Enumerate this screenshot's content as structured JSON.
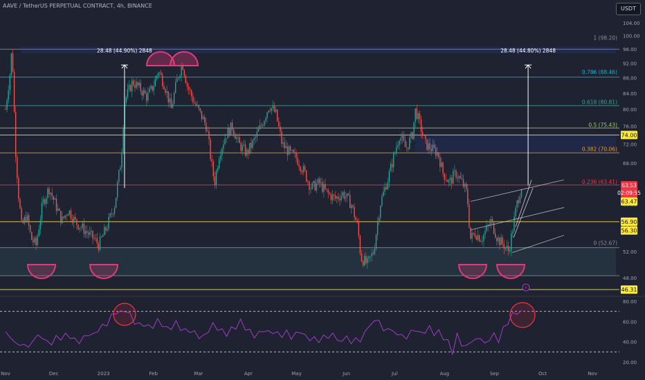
{
  "header": {
    "title": "AAVE / TetherUS PERPETUAL CONTRACT, 4h, BINANCE",
    "currency_button": "USDT"
  },
  "colors": {
    "background": "#1f2231",
    "up": "#26a69a",
    "down": "#ef5350",
    "rsi": "#a13cc8",
    "zone": "#3aa39b",
    "highlight": "#ffeb3b",
    "marker": "#e03a7a"
  },
  "chart_data": {
    "type": "candlestick",
    "symbol": "AAVE/USDT",
    "timeframe": "4h",
    "x_axis": {
      "tick_labels": [
        "Nov",
        "Dec",
        "2023",
        "Feb",
        "Mar",
        "Apr",
        "May",
        "Jun",
        "Jul",
        "Aug",
        "Sep",
        "Oct",
        "Nov"
      ]
    },
    "y_axis": {
      "scale": "log",
      "range": [
        44,
        106
      ],
      "tick_labels": [
        "104.00",
        "100.00",
        "96.00",
        "92.00",
        "88.00",
        "84.00",
        "80.00",
        "76.00",
        "72.00",
        "68.00",
        "64.00",
        "60.00",
        "56.00",
        "52.00",
        "48.00"
      ]
    },
    "price_path": [
      [
        "2022-11-01",
        80
      ],
      [
        "2022-11-04",
        90
      ],
      [
        "2022-11-05",
        97
      ],
      [
        "2022-11-07",
        72
      ],
      [
        "2022-11-09",
        62
      ],
      [
        "2022-11-11",
        56
      ],
      [
        "2022-11-14",
        58
      ],
      [
        "2022-11-17",
        54
      ],
      [
        "2022-11-20",
        53
      ],
      [
        "2022-11-24",
        60
      ],
      [
        "2022-11-28",
        63
      ],
      [
        "2022-12-02",
        60
      ],
      [
        "2022-12-06",
        57
      ],
      [
        "2022-12-10",
        59
      ],
      [
        "2022-12-14",
        57
      ],
      [
        "2022-12-18",
        56
      ],
      [
        "2022-12-22",
        55
      ],
      [
        "2022-12-26",
        54
      ],
      [
        "2022-12-29",
        53
      ],
      [
        "2023-01-03",
        56
      ],
      [
        "2023-01-08",
        60
      ],
      [
        "2023-01-12",
        69
      ],
      [
        "2023-01-14",
        82
      ],
      [
        "2023-01-19",
        87
      ],
      [
        "2023-01-24",
        85
      ],
      [
        "2023-01-28",
        83
      ],
      [
        "2023-02-01",
        86
      ],
      [
        "2023-02-04",
        90
      ],
      [
        "2023-02-08",
        86
      ],
      [
        "2023-02-12",
        80
      ],
      [
        "2023-02-16",
        88
      ],
      [
        "2023-02-19",
        92
      ],
      [
        "2023-02-22",
        86
      ],
      [
        "2023-02-26",
        82
      ],
      [
        "2023-03-02",
        79
      ],
      [
        "2023-03-06",
        76
      ],
      [
        "2023-03-09",
        68
      ],
      [
        "2023-03-11",
        64
      ],
      [
        "2023-03-14",
        70
      ],
      [
        "2023-03-18",
        74
      ],
      [
        "2023-03-22",
        76
      ],
      [
        "2023-03-26",
        72
      ],
      [
        "2023-03-31",
        70
      ],
      [
        "2023-04-05",
        73
      ],
      [
        "2023-04-10",
        77
      ],
      [
        "2023-04-14",
        81
      ],
      [
        "2023-04-18",
        79
      ],
      [
        "2023-04-22",
        72
      ],
      [
        "2023-04-27",
        70
      ],
      [
        "2023-05-01",
        69
      ],
      [
        "2023-05-06",
        66
      ],
      [
        "2023-05-10",
        63
      ],
      [
        "2023-05-15",
        64
      ],
      [
        "2023-05-20",
        62
      ],
      [
        "2023-05-25",
        61
      ],
      [
        "2023-05-30",
        62
      ],
      [
        "2023-06-04",
        60
      ],
      [
        "2023-06-08",
        56
      ],
      [
        "2023-06-10",
        51
      ],
      [
        "2023-06-14",
        50
      ],
      [
        "2023-06-18",
        52
      ],
      [
        "2023-06-22",
        60
      ],
      [
        "2023-06-27",
        65
      ],
      [
        "2023-07-01",
        70
      ],
      [
        "2023-07-04",
        74
      ],
      [
        "2023-07-08",
        71
      ],
      [
        "2023-07-12",
        74
      ],
      [
        "2023-07-14",
        80
      ],
      [
        "2023-07-17",
        76
      ],
      [
        "2023-07-20",
        72
      ],
      [
        "2023-07-24",
        71
      ],
      [
        "2023-07-28",
        70
      ],
      [
        "2023-07-31",
        66
      ],
      [
        "2023-08-04",
        64
      ],
      [
        "2023-08-08",
        66
      ],
      [
        "2023-08-12",
        64
      ],
      [
        "2023-08-15",
        62
      ],
      [
        "2023-08-17",
        54
      ],
      [
        "2023-08-20",
        55
      ],
      [
        "2023-08-24",
        54
      ],
      [
        "2023-08-28",
        56
      ],
      [
        "2023-08-30",
        57
      ],
      [
        "2023-09-03",
        54
      ],
      [
        "2023-09-07",
        53
      ],
      [
        "2023-09-10",
        52
      ],
      [
        "2023-09-12",
        55
      ],
      [
        "2023-09-15",
        60
      ],
      [
        "2023-09-18",
        63.5
      ]
    ],
    "horizontal_levels": [
      {
        "price": 96.0,
        "color": "#8a8f9a",
        "style": "solid"
      },
      {
        "price": 88.2,
        "color": "#00b7d4",
        "style": "solid"
      },
      {
        "price": 80.9,
        "color": "#3aa39b",
        "style": "solid"
      },
      {
        "price": 75.6,
        "color": "#9ccc65",
        "style": "solid"
      },
      {
        "price": 74.0,
        "color": "#ffeb3b",
        "style": "solid"
      },
      {
        "price": 70.1,
        "color": "#ff9800",
        "style": "solid"
      },
      {
        "price": 63.6,
        "color": "#f23645",
        "style": "solid"
      },
      {
        "price": 56.9,
        "color": "#ffeb3b",
        "style": "solid"
      },
      {
        "price": 52.6,
        "color": "#8a8f9a",
        "style": "solid"
      },
      {
        "price": 48.3,
        "color": "#8a8f9a",
        "style": "solid"
      },
      {
        "price": 46.31,
        "color": "#ffeb3b",
        "style": "solid"
      }
    ],
    "fib_labels": [
      {
        "text": "1 (98.20)",
        "price": 98.2,
        "color": "#8a8f9a"
      },
      {
        "text": "0.786 (88.46)",
        "price": 88.46,
        "color": "#00b7d4"
      },
      {
        "text": "0.618 (80.81)",
        "price": 80.81,
        "color": "#3aa39b"
      },
      {
        "text": "0.5 (75.43)",
        "price": 75.43,
        "color": "#9ccc65"
      },
      {
        "text": "0.382 (70.06)",
        "price": 70.06,
        "color": "#ff9800"
      },
      {
        "text": "0.236 (63.41)",
        "price": 63.41,
        "color": "#f23645"
      },
      {
        "text": "0 (52.67)",
        "price": 52.67,
        "color": "#8a8f9a"
      }
    ],
    "measurements": [
      {
        "label": "28.48 (44.90%) 2848",
        "from": [
          "2023-01-14",
          63.0
        ],
        "to": [
          "2023-01-14",
          91.5
        ]
      },
      {
        "label": "28.48 (44.80%) 2848",
        "from": [
          "2023-09-22",
          63.5
        ],
        "to": [
          "2023-09-22",
          91.5
        ]
      }
    ],
    "price_tags": [
      {
        "text": "74.00",
        "price": 74.0,
        "style": "yellow"
      },
      {
        "text": "63.53",
        "price": 63.53,
        "style": "red"
      },
      {
        "text": "02:09:55",
        "price": 62.1,
        "style": "red"
      },
      {
        "text": "63.47",
        "price": 60.5,
        "style": "yellow"
      },
      {
        "text": "56.90",
        "price": 56.9,
        "style": "yellow"
      },
      {
        "text": "56.30",
        "price": 55.4,
        "style": "yellow"
      },
      {
        "text": "46.31",
        "price": 46.31,
        "style": "yellow"
      }
    ],
    "rsi": {
      "range": [
        20,
        80
      ],
      "tick_labels": [
        "80.00",
        "60.00",
        "40.00",
        "20.00"
      ],
      "upper_band": 70,
      "lower_band": 30,
      "values": [
        50,
        44,
        40,
        36,
        38,
        34,
        42,
        46,
        44,
        40,
        38,
        45,
        43,
        47,
        45,
        42,
        40,
        44,
        48,
        46,
        52,
        55,
        58,
        65,
        70,
        68,
        72,
        66,
        60,
        56,
        58,
        54,
        56,
        60,
        58,
        52,
        55,
        58,
        54,
        50,
        52,
        48,
        46,
        44,
        52,
        56,
        54,
        50,
        48,
        52,
        55,
        60,
        54,
        50,
        46,
        48,
        52,
        49,
        50,
        48,
        46,
        50,
        44,
        48,
        50,
        46,
        42,
        44,
        40,
        46,
        44,
        48,
        42,
        40,
        46,
        38,
        44,
        40,
        50,
        56,
        60,
        62,
        50,
        54,
        50,
        48,
        46,
        44,
        50,
        52,
        48,
        50,
        54,
        48,
        50,
        44,
        40,
        30,
        46,
        38,
        34,
        42,
        40,
        46,
        36,
        44,
        46,
        42,
        52,
        60,
        66,
        70,
        68
      ]
    }
  }
}
